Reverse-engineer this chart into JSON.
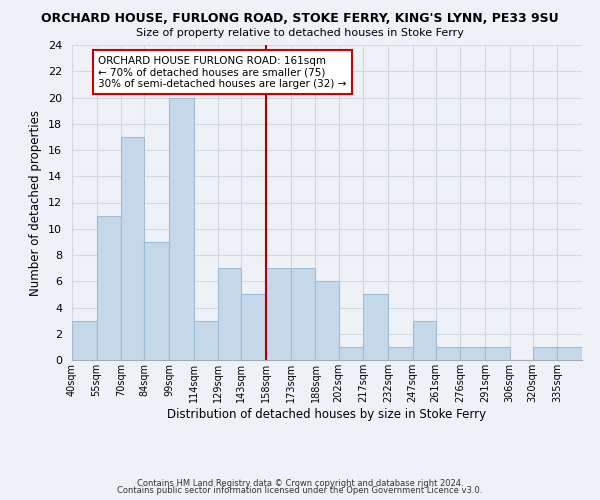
{
  "title": "ORCHARD HOUSE, FURLONG ROAD, STOKE FERRY, KING'S LYNN, PE33 9SU",
  "subtitle": "Size of property relative to detached houses in Stoke Ferry",
  "xlabel": "Distribution of detached houses by size in Stoke Ferry",
  "ylabel": "Number of detached properties",
  "bin_labels": [
    "40sqm",
    "55sqm",
    "70sqm",
    "84sqm",
    "99sqm",
    "114sqm",
    "129sqm",
    "143sqm",
    "158sqm",
    "173sqm",
    "188sqm",
    "202sqm",
    "217sqm",
    "232sqm",
    "247sqm",
    "261sqm",
    "276sqm",
    "291sqm",
    "306sqm",
    "320sqm",
    "335sqm"
  ],
  "bar_values": [
    3,
    11,
    17,
    9,
    20,
    3,
    7,
    5,
    7,
    7,
    6,
    1,
    5,
    1,
    3,
    1,
    1,
    1,
    0,
    1,
    1
  ],
  "bar_color": "#c5d8ea",
  "bar_edge_color": "#9dbdd6",
  "grid_color": "#d0d8e0",
  "bin_edges": [
    40,
    55,
    70,
    84,
    99,
    114,
    129,
    143,
    158,
    173,
    188,
    202,
    217,
    232,
    247,
    261,
    276,
    291,
    306,
    320,
    335,
    350
  ],
  "annotation_title": "ORCHARD HOUSE FURLONG ROAD: 161sqm",
  "annotation_line1": "← 70% of detached houses are smaller (75)",
  "annotation_line2": "30% of semi-detached houses are larger (32) →",
  "annotation_box_color": "#ffffff",
  "annotation_border_color": "#cc0000",
  "vline_color": "#aa0000",
  "vline_x_index": 8,
  "ylim": [
    0,
    24
  ],
  "yticks": [
    0,
    2,
    4,
    6,
    8,
    10,
    12,
    14,
    16,
    18,
    20,
    22,
    24
  ],
  "footer1": "Contains HM Land Registry data © Crown copyright and database right 2024.",
  "footer2": "Contains public sector information licensed under the Open Government Licence v3.0.",
  "bg_color": "#eef2f7"
}
